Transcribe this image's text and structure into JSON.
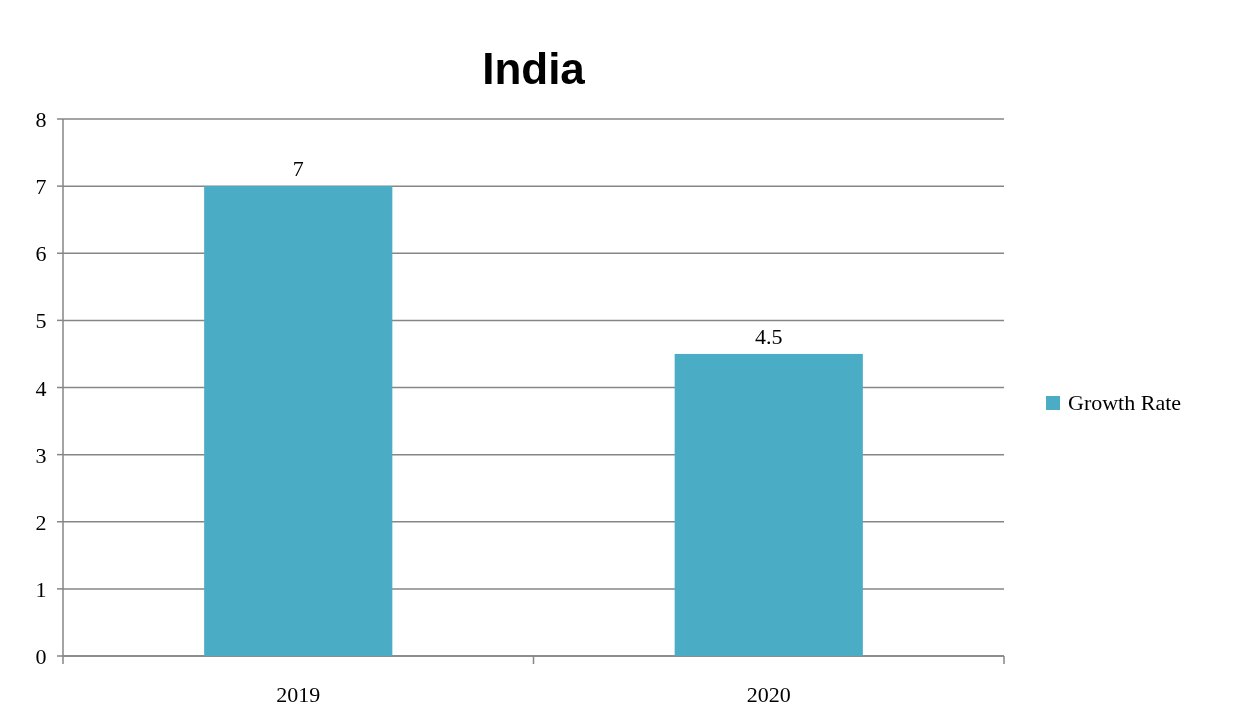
{
  "chart_data": {
    "type": "bar",
    "title": "India",
    "categories": [
      "2019",
      "2020"
    ],
    "series": [
      {
        "name": "Growth Rate",
        "color": "#4bacc6",
        "values": [
          7,
          4.5
        ]
      }
    ],
    "ylim": [
      0,
      8
    ],
    "yticks": [
      0,
      1,
      2,
      3,
      4,
      5,
      6,
      7,
      8
    ],
    "grid": "y",
    "legend": "right",
    "data_labels": true
  }
}
